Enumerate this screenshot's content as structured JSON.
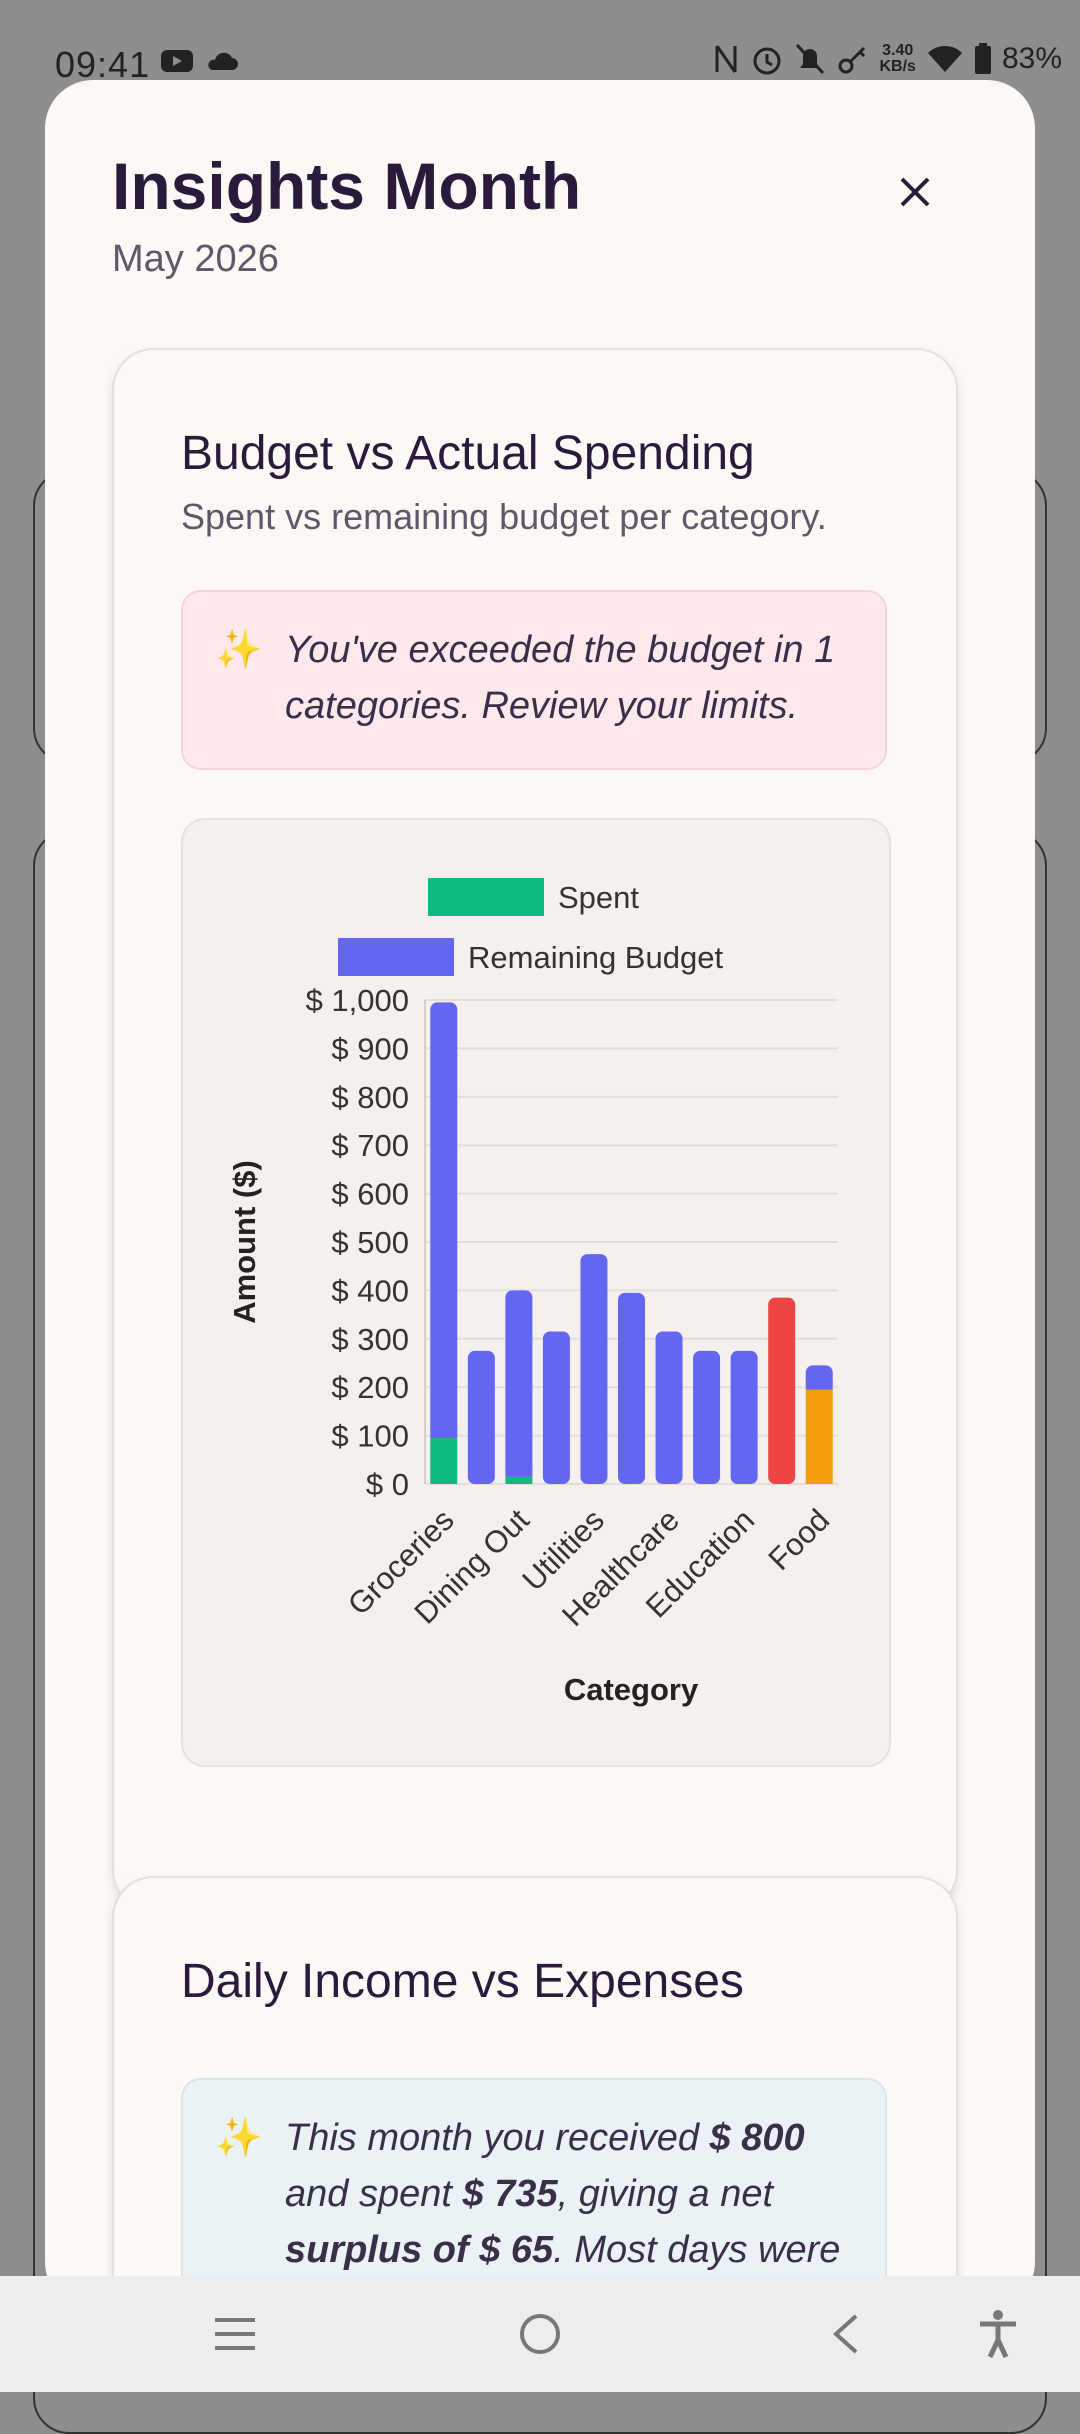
{
  "status": {
    "time": "09:41",
    "net_speed_value": "3.40",
    "net_speed_unit": "KB/s",
    "battery": "83%"
  },
  "sheet": {
    "title": "Insights Month",
    "subtitle": "May 2026"
  },
  "budget_card": {
    "title": "Budget vs Actual Spending",
    "subtitle": "Spent vs remaining budget per category.",
    "insight_icon": "✨",
    "insight": "You've exceeded the budget in 1 categories. Review your limits."
  },
  "chart_data": {
    "type": "bar",
    "stacked": true,
    "legend_position": "top",
    "xlabel": "Category",
    "ylabel": "Amount ($)",
    "ylim": [
      0,
      1000
    ],
    "y_ticks": [
      "$ 0",
      "$ 100",
      "$ 200",
      "$ 300",
      "$ 400",
      "$ 500",
      "$ 600",
      "$ 700",
      "$ 800",
      "$ 900",
      "$ 1,000"
    ],
    "x_tick_labels": [
      "Groceries",
      "Dining Out",
      "Utilities",
      "Healthcare",
      "Education",
      "Food"
    ],
    "grid": true,
    "series": [
      {
        "name": "Spent",
        "color": "#10b981",
        "values": [
          95,
          0,
          15,
          0,
          0,
          0,
          0,
          0,
          0,
          385,
          195
        ]
      },
      {
        "name": "Remaining Budget",
        "color": "#6366f1",
        "values": [
          900,
          275,
          385,
          315,
          475,
          395,
          315,
          275,
          275,
          0,
          50
        ]
      }
    ],
    "overspent_color": "#ef4444",
    "warning_color": "#f59e0b"
  },
  "daily_card": {
    "title": "Daily Income vs Expenses",
    "insight_icon": "✨",
    "insight_pre": "This month you received ",
    "income": "$ 800",
    "insight_mid": " and spent ",
    "expenses": "$ 735",
    "insight_mid2": ", giving a net ",
    "surplus": "surplus of $ 65",
    "insight_post": ". Most days were"
  }
}
